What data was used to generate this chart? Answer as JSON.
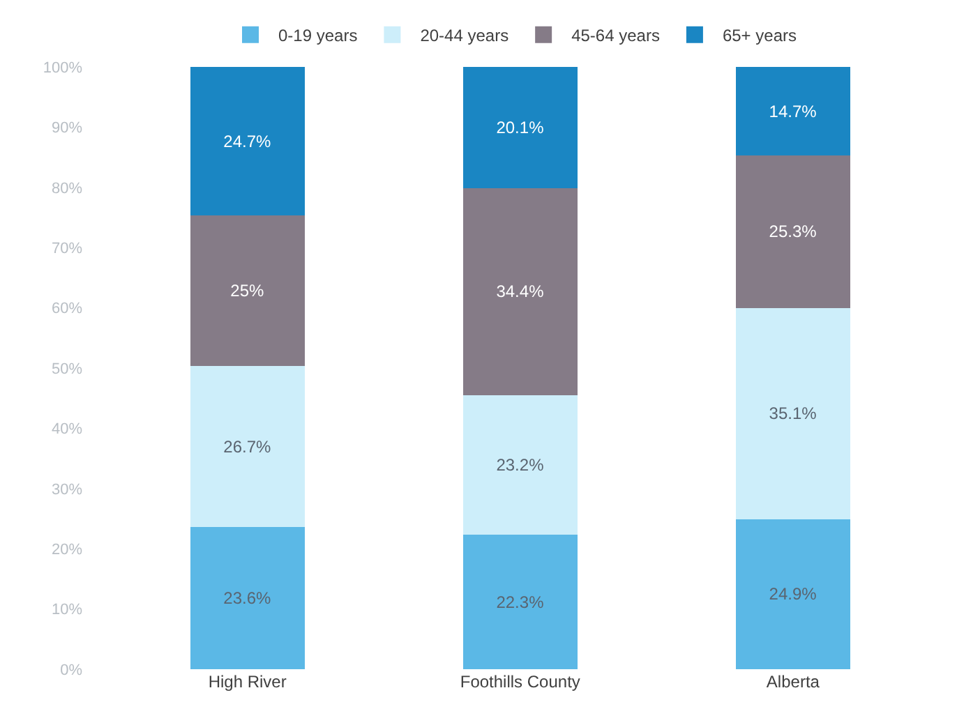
{
  "chart_data": {
    "type": "bar",
    "stacked": true,
    "categories": [
      "High River",
      "Foothills County",
      "Alberta"
    ],
    "series": [
      {
        "name": "0-19 years",
        "color": "#5bb8e6",
        "values": [
          23.6,
          22.3,
          24.9
        ],
        "value_labels": [
          "23.6%",
          "22.3%",
          "24.9%"
        ]
      },
      {
        "name": "20-44 years",
        "color": "#cdeefa",
        "values": [
          26.7,
          23.2,
          35.1
        ],
        "value_labels": [
          "26.7%",
          "23.2%",
          "35.1%"
        ]
      },
      {
        "name": "45-64 years",
        "color": "#857b87",
        "values": [
          25,
          34.4,
          25.3
        ],
        "value_labels": [
          "25%",
          "34.4%",
          "25.3%"
        ]
      },
      {
        "name": "65+ years",
        "color": "#1a86c3",
        "values": [
          24.7,
          20.1,
          14.7
        ],
        "value_labels": [
          "24.7%",
          "20.1%",
          "14.7%"
        ]
      }
    ],
    "ylim": [
      0,
      100
    ],
    "yticks": [
      {
        "value": 0,
        "label": "0%"
      },
      {
        "value": 10,
        "label": "10%"
      },
      {
        "value": 20,
        "label": "20%"
      },
      {
        "value": 30,
        "label": "30%"
      },
      {
        "value": 40,
        "label": "40%"
      },
      {
        "value": 50,
        "label": "50%"
      },
      {
        "value": 60,
        "label": "60%"
      },
      {
        "value": 70,
        "label": "70%"
      },
      {
        "value": 80,
        "label": "80%"
      },
      {
        "value": 90,
        "label": "90%"
      },
      {
        "value": 100,
        "label": "100%"
      }
    ],
    "grid": false,
    "legend": "top"
  }
}
